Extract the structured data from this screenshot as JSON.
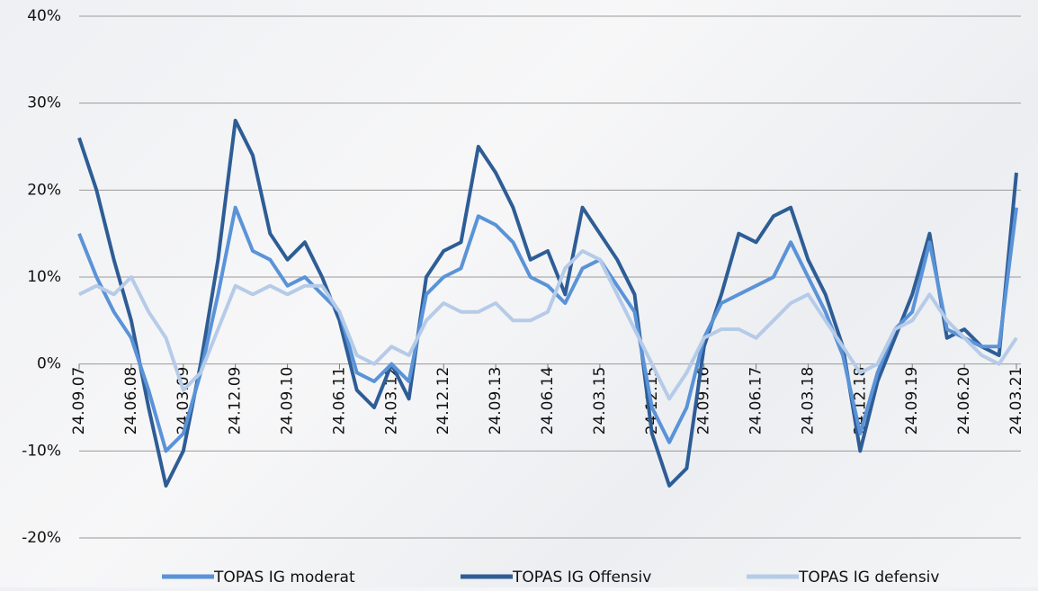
{
  "chart_data": {
    "type": "line",
    "categories": [
      "24.09.07",
      null,
      null,
      "24.06.08",
      null,
      null,
      "24.03.09",
      null,
      null,
      "24.12.09",
      null,
      null,
      "24.09.10",
      null,
      null,
      "24.06.11",
      null,
      null,
      "24.03.12",
      null,
      null,
      "24.12.12",
      null,
      null,
      "24.09.13",
      null,
      null,
      "24.06.14",
      null,
      null,
      "24.03.15",
      null,
      null,
      "24.12.15",
      null,
      null,
      "24.09.16",
      null,
      null,
      "24.06.17",
      null,
      null,
      "24.03.18",
      null,
      null,
      "24.12.18",
      null,
      null,
      "24.09.19",
      null,
      null,
      "24.06.20",
      null,
      null,
      "24.03.21"
    ],
    "series": [
      {
        "name": "TOPAS IG moderat",
        "color": "#5a93d8",
        "values": [
          15,
          10,
          6,
          3,
          -3,
          -10,
          -8,
          -1,
          8,
          18,
          13,
          12,
          9,
          10,
          8,
          6,
          -1,
          -2,
          0,
          -2,
          8,
          10,
          11,
          17,
          16,
          14,
          10,
          9,
          7,
          11,
          12,
          9,
          6,
          -5,
          -9,
          -5,
          3,
          7,
          8,
          9,
          10,
          14,
          10,
          6,
          1,
          -8,
          -1,
          4,
          6,
          14,
          4,
          3,
          2,
          2,
          18
        ]
      },
      {
        "name": "TOPAS IG Offensiv",
        "color": "#2e5d96",
        "values": [
          26,
          20,
          12,
          5,
          -5,
          -14,
          -10,
          0,
          12,
          28,
          24,
          15,
          12,
          14,
          10,
          5,
          -3,
          -5,
          0,
          -4,
          10,
          13,
          14,
          25,
          22,
          18,
          12,
          13,
          8,
          18,
          15,
          12,
          8,
          -8,
          -14,
          -12,
          2,
          8,
          15,
          14,
          17,
          18,
          12,
          8,
          2,
          -10,
          -2,
          3,
          8,
          15,
          3,
          4,
          2,
          1,
          22
        ]
      },
      {
        "name": "TOPAS IG defensiv",
        "color": "#b5cbe8",
        "values": [
          8,
          9,
          8,
          10,
          6,
          3,
          -3,
          -1,
          4,
          9,
          8,
          9,
          8,
          9,
          9,
          6,
          1,
          0,
          2,
          1,
          5,
          7,
          6,
          6,
          7,
          5,
          5,
          6,
          11,
          13,
          12,
          8,
          4,
          0,
          -4,
          -1,
          3,
          4,
          4,
          3,
          5,
          7,
          8,
          5,
          2,
          -1,
          0,
          4,
          5,
          8,
          5,
          3,
          1,
          0,
          3
        ]
      }
    ],
    "ylim": [
      -20,
      40
    ],
    "yticks": [
      {
        "value": -20,
        "label": "-20%"
      },
      {
        "value": -10,
        "label": "-10%"
      },
      {
        "value": 0,
        "label": "0%"
      },
      {
        "value": 10,
        "label": "10%"
      },
      {
        "value": 20,
        "label": "20%"
      },
      {
        "value": 30,
        "label": "30%"
      },
      {
        "value": 40,
        "label": "40%"
      }
    ],
    "grid": true,
    "legend": "bottom"
  }
}
